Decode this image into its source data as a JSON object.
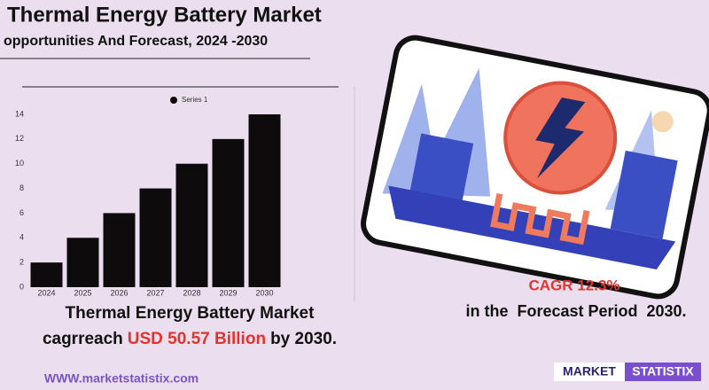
{
  "header": {
    "title": "Thermal Energy Battery Market",
    "subtitle": "opportunities And Forecast, 2024 -2030"
  },
  "chart_data": {
    "type": "bar",
    "categories": [
      "2024",
      "2025",
      "2026",
      "2027",
      "2028",
      "2029",
      "2030"
    ],
    "series": [
      {
        "name": "Series 1",
        "color": "#0d0b0c",
        "values": [
          2,
          4,
          6,
          8,
          10,
          12,
          14
        ]
      }
    ],
    "ylim": [
      0,
      14
    ],
    "yticks": [
      0,
      2,
      4,
      6,
      8,
      10,
      12,
      14
    ],
    "grid": false,
    "legend": "top"
  },
  "summary": {
    "line1": "Thermal Energy Battery Market",
    "line2_before": "cagrreach",
    "highlight": "USD 50.57 Billion",
    "line2_after": "by 2030."
  },
  "cagr": {
    "value_text": "CAGR 12.3%",
    "period": "in the  Forecast Period  2030."
  },
  "footer": {
    "website": "WWW.marketstatistix.com",
    "logo_left": "MARKET",
    "logo_right": "STATISTIX"
  }
}
